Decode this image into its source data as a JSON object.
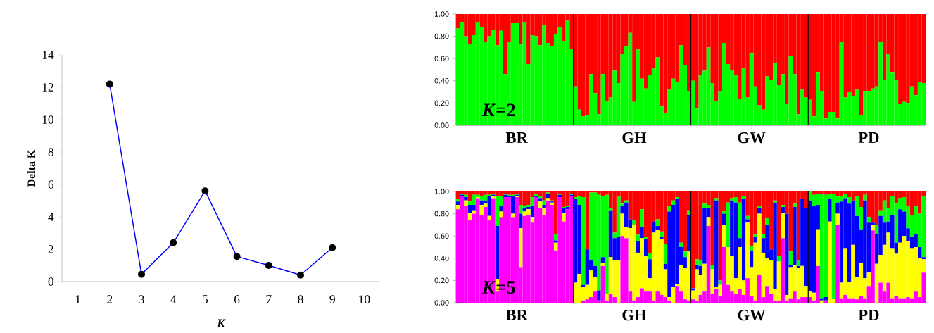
{
  "chart_data": [
    {
      "type": "line",
      "xlabel": "K",
      "ylabel": "Delta K",
      "categories": [
        "1",
        "2",
        "3",
        "4",
        "5",
        "6",
        "7",
        "8",
        "9",
        "10"
      ],
      "series": [
        {
          "color": "#0000ff",
          "values": [
            null,
            12.2,
            0.45,
            2.4,
            5.6,
            1.55,
            1.0,
            0.4,
            2.1,
            null
          ]
        }
      ],
      "ylim": [
        0,
        14
      ],
      "yticks": [
        0,
        2,
        4,
        6,
        8,
        10,
        12,
        14
      ],
      "marker": "circle",
      "line_style": "solid"
    },
    {
      "type": "bar",
      "stacked": true,
      "annotations": [
        "*K*=2"
      ],
      "categories": [
        null,
        null,
        null,
        null,
        null,
        null,
        null,
        null,
        null,
        null,
        null,
        null,
        null,
        null,
        null,
        "BR",
        null,
        null,
        null,
        null,
        null,
        null,
        null,
        null,
        null,
        null,
        null,
        null,
        null,
        null,
        null,
        null,
        null,
        null,
        null,
        null,
        null,
        null,
        null,
        null,
        null,
        null,
        null,
        null,
        null,
        "GH",
        null,
        null,
        null,
        null,
        null,
        null,
        null,
        null,
        null,
        null,
        null,
        null,
        null,
        null,
        null,
        null,
        null,
        null,
        null,
        null,
        null,
        null,
        null,
        null,
        null,
        null,
        null,
        null,
        null,
        "GW",
        null,
        null,
        null,
        null,
        null,
        null,
        null,
        null,
        null,
        null,
        null,
        null,
        null,
        null,
        null,
        null,
        null,
        null,
        null,
        null,
        null,
        null,
        null,
        null,
        null,
        null,
        null,
        null,
        null,
        "PD",
        null,
        null,
        null,
        null,
        null,
        null,
        null,
        null,
        null,
        null,
        null,
        null,
        null,
        null
      ],
      "series": [
        {
          "color": "#00ff00",
          "values": [
            0.87,
            0.93,
            0.8,
            0.73,
            0.81,
            0.93,
            0.88,
            0.75,
            0.8,
            0.86,
            0.72,
            0.85,
            0.46,
            0.75,
            0.92,
            0.92,
            0.73,
            0.93,
            0.55,
            0.81,
            0.8,
            0.72,
            0.9,
            0.74,
            0.71,
            0.82,
            0.88,
            0.76,
            0.94,
            0.69,
            0.35,
            0.14,
            0.08,
            0.09,
            0.46,
            0.29,
            0.1,
            0.46,
            0.22,
            0.25,
            0.49,
            0.38,
            0.64,
            0.71,
            0.83,
            0.21,
            0.68,
            0.42,
            0.33,
            0.45,
            0.51,
            0.61,
            0.17,
            0.11,
            0.32,
            0.42,
            0.39,
            0.72,
            0.54,
            0.31,
            0.4,
            0.15,
            0.45,
            0.49,
            0.7,
            0.38,
            0.22,
            0.31,
            0.74,
            0.55,
            0.5,
            0.45,
            0.24,
            0.51,
            0.25,
            0.65,
            0.35,
            0.18,
            0.14,
            0.44,
            0.41,
            0.56,
            0.36,
            0.46,
            0.19,
            0.62,
            0.46,
            0.1,
            0.32,
            0.25,
            0.23,
            0.08,
            0.48,
            0.31,
            0.06,
            0.12,
            0.12,
            0.06,
            0.75,
            0.25,
            0.3,
            0.26,
            0.32,
            0.09,
            0.31,
            0.31,
            0.33,
            0.35,
            0.75,
            0.41,
            0.64,
            0.48,
            0.41,
            0.19,
            0.21,
            0.2,
            0.35,
            0.27,
            0.39,
            0.38
          ]
        },
        {
          "color": "#ff0000",
          "values": [
            0.13,
            0.07,
            0.2,
            0.27,
            0.19,
            0.07,
            0.12,
            0.25,
            0.2,
            0.14,
            0.28,
            0.15,
            0.54,
            0.25,
            0.08,
            0.08,
            0.27,
            0.07,
            0.45,
            0.19,
            0.2,
            0.28,
            0.1,
            0.26,
            0.29,
            0.18,
            0.12,
            0.24,
            0.06,
            0.31,
            0.65,
            0.86,
            0.92,
            0.91,
            0.54,
            0.71,
            0.9,
            0.54,
            0.78,
            0.75,
            0.51,
            0.62,
            0.36,
            0.29,
            0.17,
            0.79,
            0.32,
            0.58,
            0.67,
            0.55,
            0.49,
            0.39,
            0.83,
            0.89,
            0.68,
            0.58,
            0.61,
            0.28,
            0.46,
            0.69,
            0.6,
            0.85,
            0.55,
            0.51,
            0.3,
            0.62,
            0.78,
            0.69,
            0.26,
            0.45,
            0.5,
            0.55,
            0.76,
            0.49,
            0.75,
            0.35,
            0.65,
            0.82,
            0.86,
            0.56,
            0.59,
            0.44,
            0.64,
            0.54,
            0.81,
            0.38,
            0.54,
            0.9,
            0.68,
            0.75,
            0.77,
            0.92,
            0.52,
            0.69,
            0.94,
            0.88,
            0.88,
            0.94,
            0.25,
            0.75,
            0.7,
            0.74,
            0.68,
            0.91,
            0.69,
            0.69,
            0.67,
            0.65,
            0.25,
            0.59,
            0.36,
            0.52,
            0.59,
            0.81,
            0.79,
            0.8,
            0.65,
            0.73,
            0.61,
            0.62
          ]
        }
      ],
      "ylim": [
        0,
        1
      ],
      "yticks": [
        {
          "value": 0,
          "label": "0.00"
        },
        {
          "value": 0.2,
          "label": "0.20"
        },
        {
          "value": 0.4,
          "label": "0.40"
        },
        {
          "value": 0.6,
          "label": "0.60"
        },
        {
          "value": 0.8,
          "label": "0.80"
        },
        {
          "value": 1,
          "label": "1.00"
        }
      ]
    },
    {
      "type": "bar",
      "stacked": true,
      "annotations": [
        "*K*=5"
      ],
      "categories": [
        null,
        null,
        null,
        null,
        null,
        null,
        null,
        null,
        null,
        null,
        null,
        null,
        null,
        null,
        null,
        "BR",
        null,
        null,
        null,
        null,
        null,
        null,
        null,
        null,
        null,
        null,
        null,
        null,
        null,
        null,
        null,
        null,
        null,
        null,
        null,
        null,
        null,
        null,
        null,
        null,
        null,
        null,
        null,
        null,
        null,
        "GH",
        null,
        null,
        null,
        null,
        null,
        null,
        null,
        null,
        null,
        null,
        null,
        null,
        null,
        null,
        null,
        null,
        null,
        null,
        null,
        null,
        null,
        null,
        null,
        null,
        null,
        null,
        null,
        null,
        null,
        "GW",
        null,
        null,
        null,
        null,
        null,
        null,
        null,
        null,
        null,
        null,
        null,
        null,
        null,
        null,
        null,
        null,
        null,
        null,
        null,
        null,
        null,
        null,
        null,
        null,
        null,
        null,
        null,
        null,
        null,
        "PD",
        null,
        null,
        null,
        null,
        null,
        null,
        null,
        null,
        null,
        null,
        null,
        null,
        null,
        null
      ],
      "series": [
        {
          "color": "#ff00ff",
          "values": [
            0.84,
            0.96,
            0.87,
            0.74,
            0.8,
            0.94,
            0.79,
            0.86,
            0.74,
            0.94,
            0.1,
            0.77,
            0.95,
            0.95,
            0.77,
            0.95,
            0.32,
            0.78,
            0.79,
            0.72,
            0.95,
            0.85,
            0.79,
            0.92,
            0.88,
            0.47,
            0.95,
            0.73,
            0.84,
            0.96,
            0,
            0,
            0.02,
            0.03,
            0.05,
            0.1,
            0.02,
            0.33,
            0.02,
            0.08,
            0.05,
            0,
            0.6,
            0.58,
            0.1,
            0.02,
            0.05,
            0.13,
            0.1,
            0.1,
            0.02,
            0.1,
            0.07,
            0.05,
            0.02,
            0,
            0.15,
            0.1,
            0.03,
            0.02,
            0.03,
            0.02,
            0.07,
            0.1,
            0.69,
            0.08,
            0.12,
            0.06,
            0.5,
            0.16,
            0.1,
            0.08,
            0.12,
            0.07,
            0.22,
            0.06,
            0.02,
            0.25,
            0.05,
            0.15,
            0.08,
            0.02,
            0.02,
            0.58,
            0.02,
            0.04,
            0.1,
            0.03,
            0.05,
            0.05,
            0.05,
            0.02,
            0.33,
            0,
            0.02,
            0,
            0,
            0.7,
            0.04,
            0.07,
            0.04,
            0.04,
            0.03,
            0.06,
            0.04,
            0.15,
            0.65,
            0,
            0.18,
            0.1,
            0.18,
            0.04,
            0.06,
            0.04,
            0.04,
            0.05,
            0.04,
            0.1,
            0.05,
            0.27
          ]
        },
        {
          "color": "#ffff00",
          "values": [
            0.04,
            0,
            0.05,
            0.07,
            0.03,
            0.01,
            0.09,
            0.03,
            0.04,
            0.02,
            0.11,
            0.05,
            0,
            0,
            0.03,
            0.01,
            0.35,
            0.04,
            0.05,
            0.05,
            0,
            0.06,
            0.06,
            0.02,
            0.02,
            0.07,
            0,
            0.08,
            0,
            0,
            0.18,
            0.26,
            0.12,
            0.13,
            0.24,
            0.13,
            0,
            0.03,
            0.06,
            0.33,
            0.33,
            0.38,
            0.2,
            0.1,
            0.57,
            0.68,
            0.4,
            0.45,
            0.32,
            0.12,
            0.61,
            0.55,
            0.5,
            0.25,
            0.03,
            0.14,
            0.02,
            0.24,
            0.28,
            0.44,
            0.08,
            0.28,
            0.18,
            0.25,
            0.08,
            0.22,
            0.02,
            0.1,
            0.2,
            0.34,
            0.32,
            0.14,
            0.38,
            0.13,
            0.5,
            0.26,
            0.52,
            0.55,
            0.4,
            0.25,
            0.3,
            0.1,
            0.35,
            0.23,
            0.05,
            0.28,
            0.24,
            0.28,
            0.28,
            0.1,
            0.05,
            0.07,
            0.33,
            0.02,
            0,
            0.73,
            0.03,
            0.1,
            0.14,
            0.42,
            0.15,
            0.48,
            0.2,
            0.3,
            0.18,
            0.12,
            0.05,
            0.35,
            0.25,
            0.42,
            0.45,
            0.45,
            0.38,
            0.5,
            0.56,
            0.5,
            0.45,
            0.4,
            0.35,
            0.12
          ]
        },
        {
          "color": "#0000ff",
          "values": [
            0.03,
            0.01,
            0.03,
            0.07,
            0.05,
            0,
            0.04,
            0.03,
            0.18,
            0.01,
            0.48,
            0.05,
            0.02,
            0.01,
            0.16,
            0.01,
            0.13,
            0.03,
            0.02,
            0.1,
            0.01,
            0.03,
            0.03,
            0.04,
            0.01,
            0.02,
            0.02,
            0.04,
            0.02,
            0.01,
            0.75,
            0.62,
            0.02,
            0.32,
            0.09,
            0.1,
            0.09,
            0.05,
            0,
            0.42,
            0.2,
            0.21,
            0.07,
            0.22,
            0.08,
            0,
            0.1,
            0.1,
            0.15,
            0.17,
            0.1,
            0.04,
            0.02,
            0.05,
            0.77,
            0.74,
            0.76,
            0.16,
            0.1,
            0.33,
            0.02,
            0.04,
            0.08,
            0.5,
            0.08,
            0,
            0.78,
            0,
            0.1,
            0,
            0.5,
            0.68,
            0.08,
            0.73,
            0.03,
            0.15,
            0.05,
            0.05,
            0.13,
            0.3,
            0.1,
            0.78,
            0,
            0.05,
            0.73,
            0.02,
            0.52,
            0.02,
            0.6,
            0.7,
            0.82,
            0.78,
            0.22,
            0.02,
            0.03,
            0.2,
            0,
            0.1,
            0.73,
            0.45,
            0.7,
            0.4,
            0.55,
            0.3,
            0.7,
            0.45,
            0.02,
            0.27,
            0.35,
            0.2,
            0.1,
            0.3,
            0.1,
            0.3,
            0.22,
            0.12,
            0.1,
            0.12,
            0.1,
            0.02
          ]
        },
        {
          "color": "#00ff00",
          "values": [
            0.02,
            0.01,
            0.02,
            0.03,
            0.09,
            0.02,
            0.04,
            0.05,
            0.01,
            0.01,
            0.27,
            0.09,
            0.01,
            0.01,
            0.01,
            0.01,
            0.08,
            0.02,
            0.02,
            0.08,
            0.02,
            0.02,
            0.04,
            0.01,
            0.01,
            0.06,
            0.01,
            0.01,
            0.01,
            0.01,
            0.02,
            0.08,
            0.79,
            0,
            0.61,
            0.66,
            0.86,
            0.55,
            0.89,
            0.02,
            0.05,
            0.37,
            0.02,
            0.02,
            0,
            0.04,
            0.06,
            0.16,
            0.02,
            0.06,
            0,
            0.06,
            0.05,
            0.18,
            0.05,
            0.04,
            0.02,
            0.04,
            0.05,
            0.04,
            0,
            0.05,
            0.05,
            0.04,
            0.03,
            0.04,
            0.02,
            0.04,
            0.02,
            0.4,
            0.02,
            0.05,
            0.32,
            0.03,
            0.03,
            0.04,
            0.02,
            0.02,
            0.04,
            0.06,
            0,
            0.02,
            0.05,
            0.02,
            0,
            0.12,
            0.03,
            0.05,
            0,
            0,
            0.08,
            0.1,
            0.1,
            0.94,
            0.92,
            0.05,
            0.95,
            0.06,
            0.05,
            0.04,
            0.06,
            0,
            0.18,
            0.2,
            0.05,
            0.05,
            0,
            0.08,
            0.05,
            0.2,
            0.12,
            0.17,
            0.35,
            0.1,
            0.13,
            0.2,
            0.2,
            0.25,
            0.3,
            0.55
          ]
        },
        {
          "color": "#ff0000",
          "values": [
            0.07,
            0.02,
            0.03,
            0.09,
            0.03,
            0.03,
            0.04,
            0.03,
            0.03,
            0.02,
            0.04,
            0.04,
            0.02,
            0.03,
            0.03,
            0.02,
            0.12,
            0.13,
            0.12,
            0.05,
            0.02,
            0.04,
            0.08,
            0.01,
            0.08,
            0.38,
            0.02,
            0.14,
            0.13,
            0.02,
            0.05,
            0.04,
            0.05,
            0.52,
            0.01,
            0.01,
            0.03,
            0.04,
            0.03,
            0.15,
            0.37,
            0.04,
            0.11,
            0.08,
            0.25,
            0.26,
            0.39,
            0.16,
            0.41,
            0.55,
            0.27,
            0.25,
            0.36,
            0.47,
            0.13,
            0.08,
            0.05,
            0.46,
            0.54,
            0.17,
            0.87,
            0.61,
            0.62,
            0.11,
            0.12,
            0.66,
            0.06,
            0.8,
            0.18,
            0.1,
            0.06,
            0.05,
            0.1,
            0.04,
            0.22,
            0.49,
            0.39,
            0.13,
            0.38,
            0.24,
            0.52,
            0.08,
            0.58,
            0.12,
            0.2,
            0.54,
            0.11,
            0.62,
            0.07,
            0.15,
            0,
            0.03,
            0.02,
            0.02,
            0.03,
            0.02,
            0.02,
            0.04,
            0.04,
            0.02,
            0.05,
            0.08,
            0.04,
            0.14,
            0.03,
            0.23,
            0.28,
            0.3,
            0.17,
            0.08,
            0.15,
            0.04,
            0.11,
            0.06,
            0.05,
            0.13,
            0.21,
            0.13,
            0.2,
            0.04
          ]
        }
      ],
      "ylim": [
        0,
        1
      ],
      "yticks": [
        {
          "value": 0,
          "label": "0.00"
        },
        {
          "value": 0.2,
          "label": "0.20"
        },
        {
          "value": 0.4,
          "label": "0.40"
        },
        {
          "value": 0.6,
          "label": "0.60"
        },
        {
          "value": 0.8,
          "label": "0.80"
        },
        {
          "value": 1,
          "label": "1.00"
        }
      ]
    }
  ]
}
